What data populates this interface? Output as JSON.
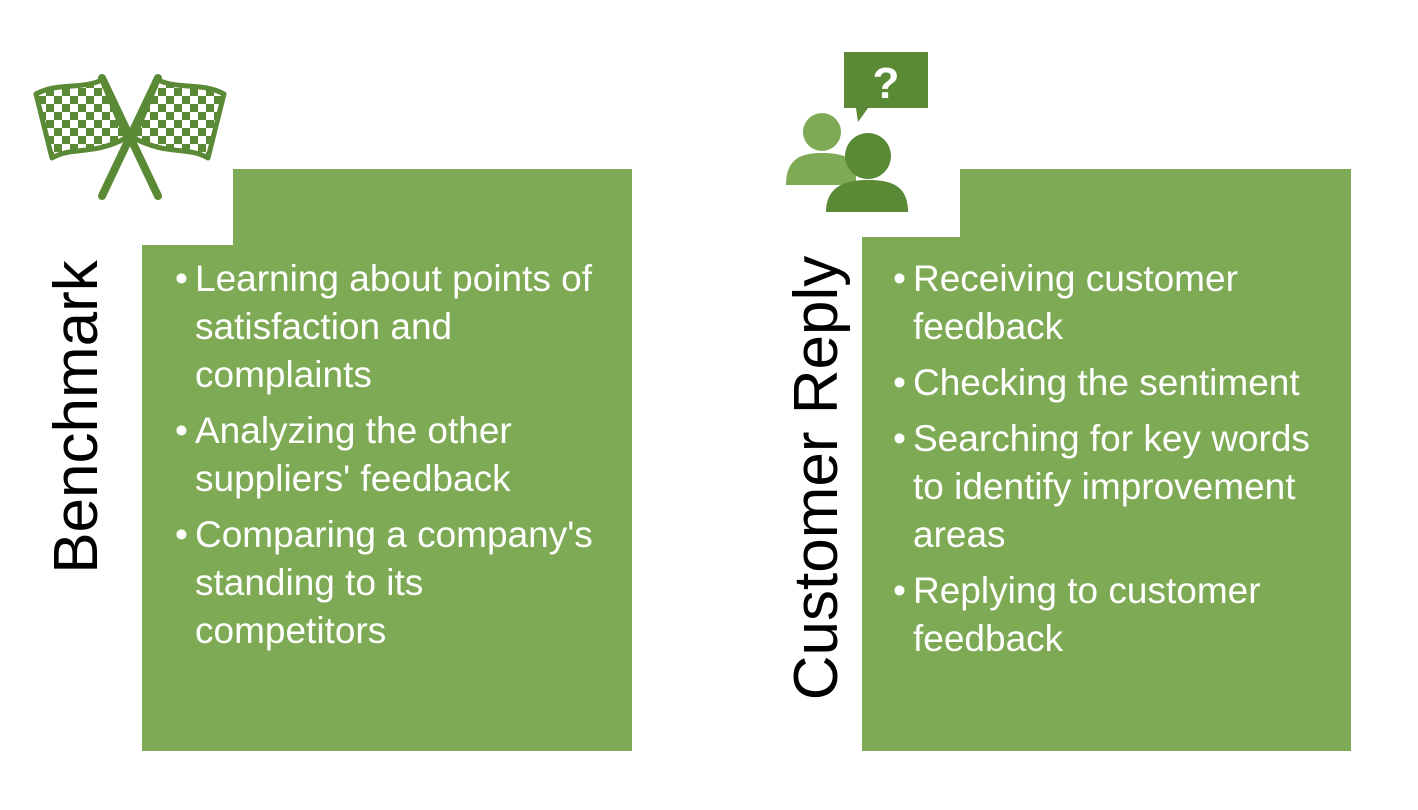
{
  "colors": {
    "card_green": "#7faa55",
    "icon_green": "#5a8a35"
  },
  "benchmark": {
    "title": "Benchmark",
    "icon": "checkered-flags-icon",
    "bullets": [
      "Learning about points of satisfaction and complaints",
      "Analyzing the other suppliers' feedback",
      "Comparing a company's standing to its competitors"
    ]
  },
  "customer_reply": {
    "title": "Customer Reply",
    "icon": "people-question-icon",
    "icon_glyph": "?",
    "bullets": [
      "Receiving customer feedback",
      "Checking the sentiment",
      "Searching for key words to identify improvement areas",
      "Replying to customer feedback"
    ]
  }
}
